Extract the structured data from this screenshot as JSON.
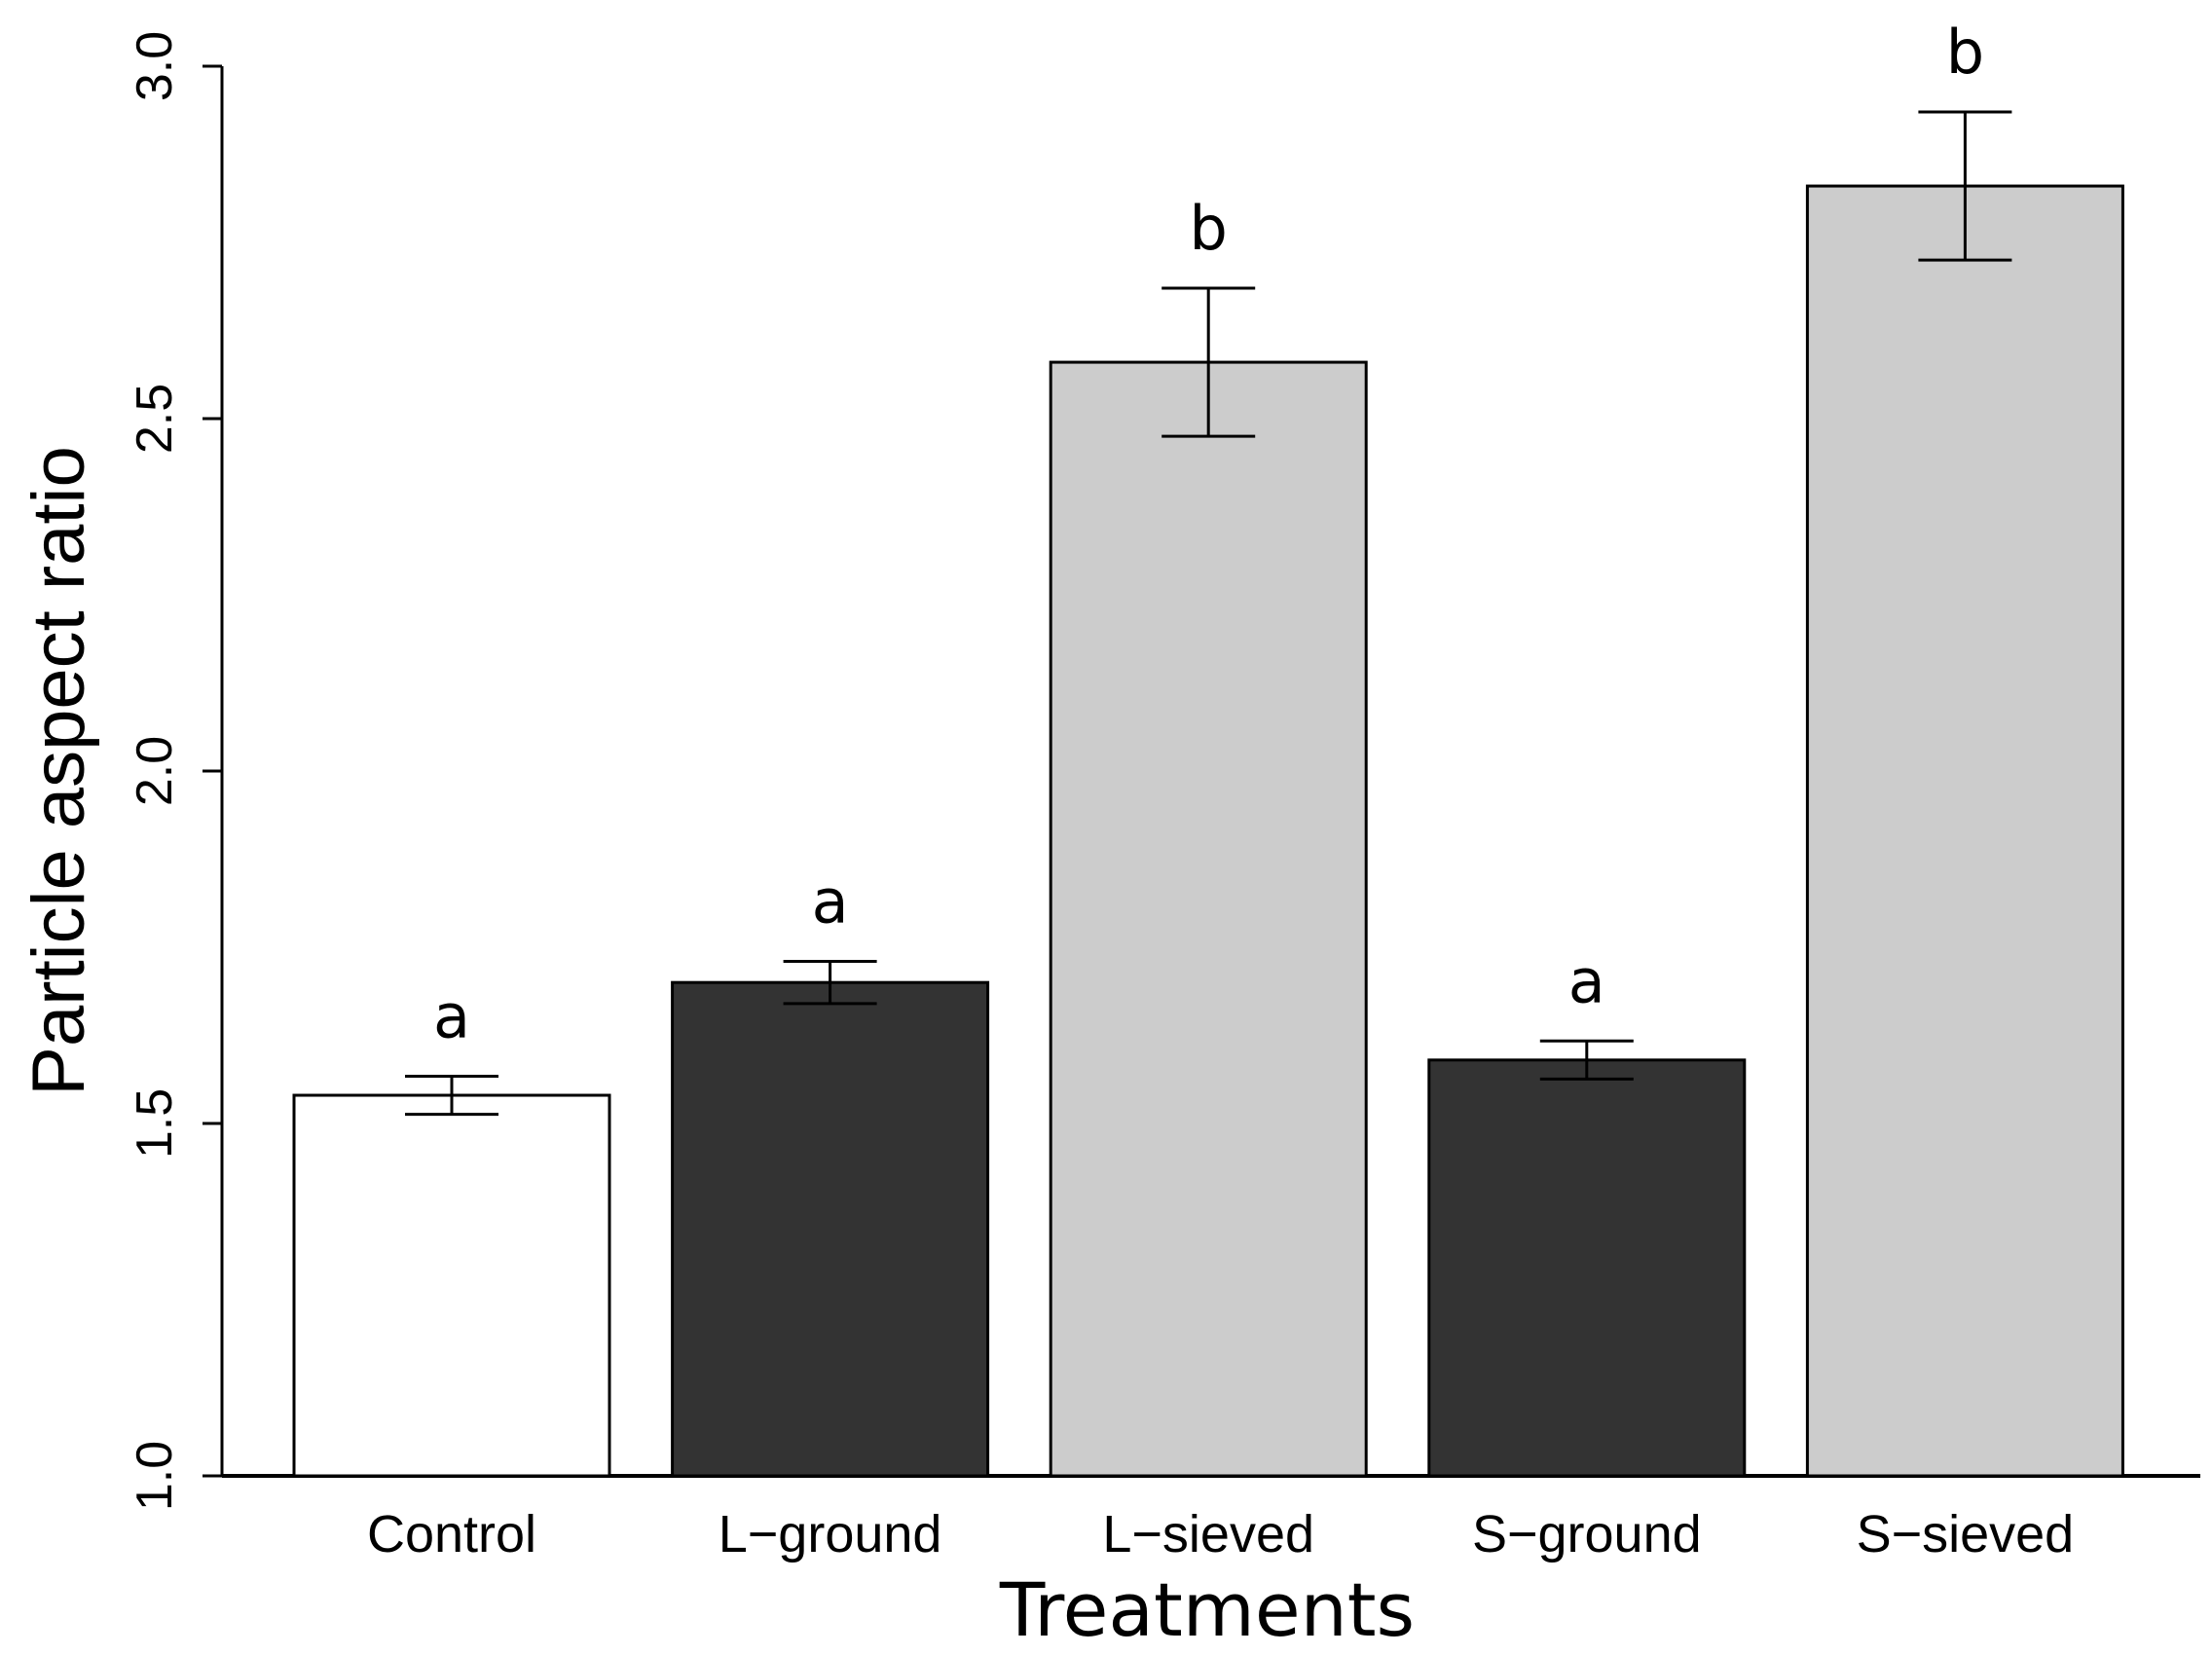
{
  "chart_data": {
    "type": "bar",
    "title": "",
    "xlabel": "Treatments",
    "ylabel": "Particle aspect ratio",
    "ylim": [
      1.0,
      3.0
    ],
    "yticks": [
      "1.0",
      "1.5",
      "2.0",
      "2.5",
      "3.0"
    ],
    "ytick_values": [
      1.0,
      1.5,
      2.0,
      2.5,
      3.0
    ],
    "categories": [
      "Control",
      "L−ground",
      "L−sieved",
      "S−ground",
      "S−sieved"
    ],
    "values": [
      1.54,
      1.7,
      2.58,
      1.59,
      2.83
    ],
    "errors": [
      0.027,
      0.03,
      0.105,
      0.027,
      0.105
    ],
    "significance": [
      "a",
      "a",
      "b",
      "a",
      "b"
    ],
    "colors": [
      "#ffffff",
      "#333333",
      "#cccccc",
      "#333333",
      "#cccccc"
    ],
    "grid": false,
    "legend": "none"
  }
}
